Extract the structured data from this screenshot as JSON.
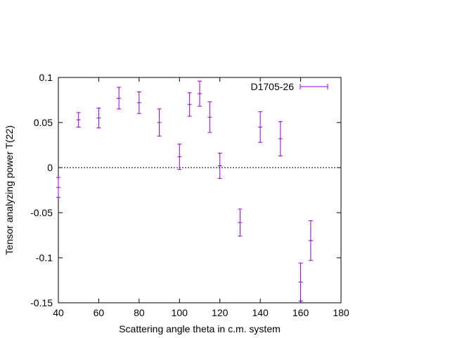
{
  "chart_data": {
    "type": "scatter",
    "xlabel": "Scattering angle theta in c.m. system",
    "ylabel": "Tensor analyzing power T(22)",
    "xlim": [
      40,
      180
    ],
    "ylim": [
      -0.15,
      0.1
    ],
    "xticks": [
      40,
      60,
      80,
      100,
      120,
      140,
      160,
      180
    ],
    "yticks": [
      -0.15,
      -0.1,
      -0.05,
      0,
      0.05,
      0.1
    ],
    "xtick_labels": [
      "40",
      "60",
      "80",
      "100",
      "120",
      "140",
      "160",
      "180"
    ],
    "ytick_labels": [
      "-0.15",
      "-0.1",
      "-0.05",
      "0",
      "0.05",
      "0.1"
    ],
    "grid": false,
    "zero_line": true,
    "legend_position": "top-right",
    "colors": {
      "series": "#9400d3",
      "axis": "#000000"
    },
    "series": [
      {
        "name": "D1705-26",
        "points": [
          {
            "x": 40,
            "y": -0.022,
            "err": 0.011
          },
          {
            "x": 50,
            "y": 0.053,
            "err": 0.008
          },
          {
            "x": 60,
            "y": 0.055,
            "err": 0.011
          },
          {
            "x": 70,
            "y": 0.077,
            "err": 0.012
          },
          {
            "x": 80,
            "y": 0.072,
            "err": 0.012
          },
          {
            "x": 90,
            "y": 0.05,
            "err": 0.015
          },
          {
            "x": 100,
            "y": 0.012,
            "err": 0.014
          },
          {
            "x": 105,
            "y": 0.07,
            "err": 0.013
          },
          {
            "x": 110,
            "y": 0.082,
            "err": 0.014
          },
          {
            "x": 115,
            "y": 0.056,
            "err": 0.017
          },
          {
            "x": 120,
            "y": 0.002,
            "err": 0.014
          },
          {
            "x": 130,
            "y": -0.061,
            "err": 0.015
          },
          {
            "x": 140,
            "y": 0.045,
            "err": 0.017
          },
          {
            "x": 150,
            "y": 0.032,
            "err": 0.019
          },
          {
            "x": 160,
            "y": -0.127,
            "err": 0.021
          },
          {
            "x": 165,
            "y": -0.081,
            "err": 0.022
          }
        ]
      }
    ]
  }
}
